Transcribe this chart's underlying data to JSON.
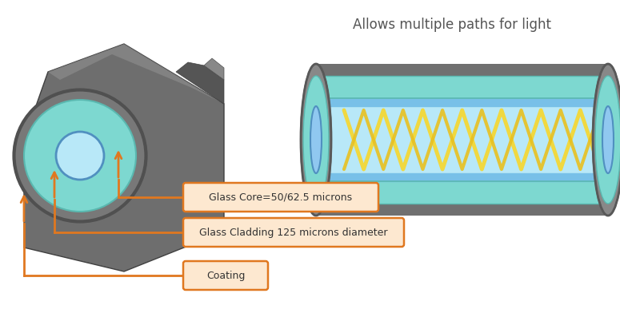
{
  "title": "Allows multiple paths for light",
  "title_color": "#555555",
  "title_fontsize": 12,
  "bg_color": "#ffffff",
  "labels": [
    "Glass Core=50/62.5 microns",
    "Glass Cladding 125 microns diameter",
    "Coating"
  ],
  "label_box_color": "#fde8d0",
  "label_border_color": "#e07820",
  "label_text_color": "#333333",
  "arrow_color": "#e07820",
  "coating_gray": "#707070",
  "coating_dark": "#585858",
  "cladding_teal": "#7dd8d0",
  "cladding_teal_dark": "#5ab8b0",
  "core_blue_light": "#b8e8f8",
  "core_blue": "#90d0f0",
  "core_stripe_blue": "#78c0e8",
  "zigzag_yellow": "#f0d840",
  "zigzag_yellow2": "#e8c020",
  "end_gray": "#909090",
  "connector_body": "#707070",
  "connector_light": "#909090",
  "connector_dark": "#505050"
}
